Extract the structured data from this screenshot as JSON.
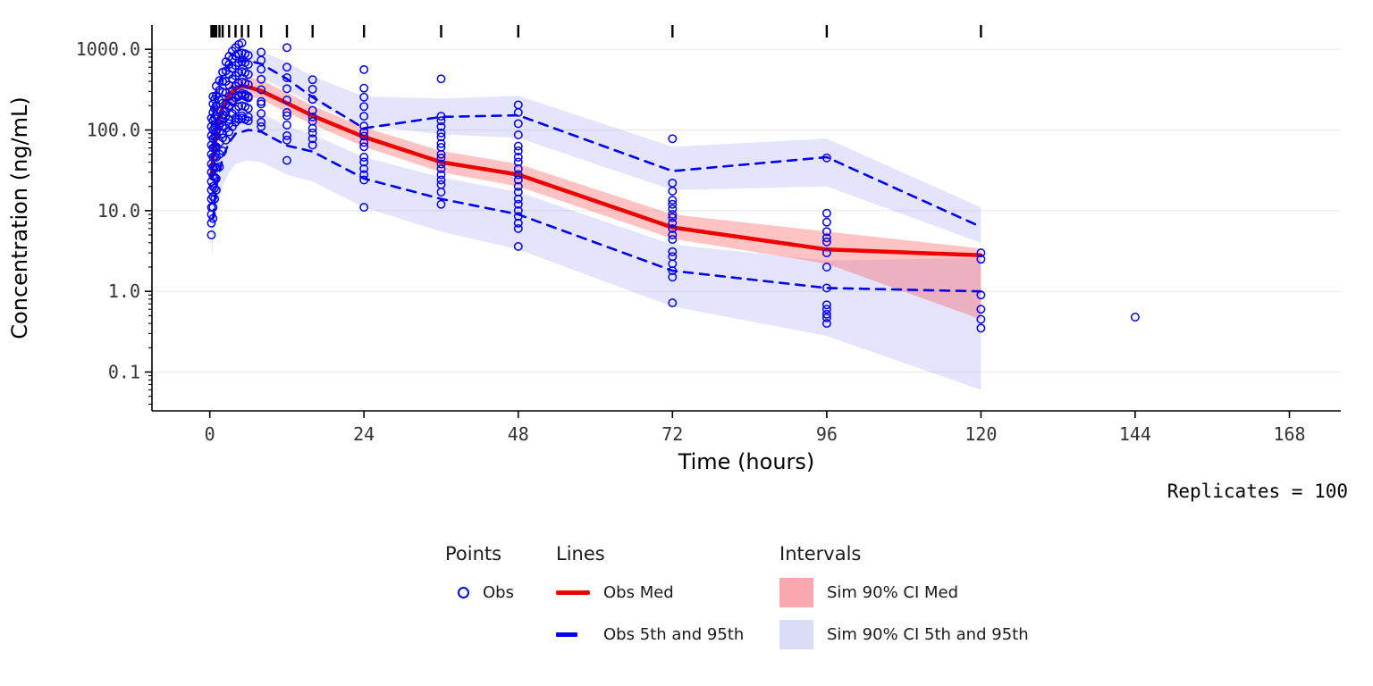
{
  "replicates_label": "Replicates = 100",
  "colors": {
    "obs": "#0000EE",
    "obs_med": "#EE0000",
    "obs_pct": "#0000EE",
    "sim_med_fill": "rgba(255,55,55,0.30)",
    "sim_pct_fill": "rgba(85,85,235,0.16)",
    "sim_med_legend": "#F9A8AE",
    "sim_pct_legend": "#DBDDF8",
    "grid": "#EBEBEB",
    "axis": "#000000",
    "tick_text": "#333333"
  },
  "legend": {
    "points_header": "Points",
    "lines_header": "Lines",
    "intervals_header": "Intervals",
    "obs_label": "Obs",
    "obs_med_label": "Obs Med",
    "obs_pct_label": "Obs 5th and 95th",
    "sim_med_label": "Sim 90% CI Med",
    "sim_pct_label": "Sim 90% CI 5th and 95th"
  },
  "chart_data": {
    "type": "line",
    "subtype": "vpc-scatter-line-band",
    "title": "",
    "xlabel": "Time (hours)",
    "ylabel": "Concentration (ng/mL)",
    "xlim": [
      -9,
      176
    ],
    "ylim_log": [
      0.033,
      2000
    ],
    "xticks": [
      0,
      24,
      48,
      72,
      96,
      120,
      144,
      168
    ],
    "yticks": [
      {
        "v": 1000,
        "label": "1000.0"
      },
      {
        "v": 100,
        "label": "100.0"
      },
      {
        "v": 10,
        "label": "10.0"
      },
      {
        "v": 1,
        "label": "1.0"
      },
      {
        "v": 0.1,
        "label": "0.1"
      }
    ],
    "grid": "horizontal-major",
    "legend_position": "bottom",
    "rug_times": [
      0.25,
      0.5,
      0.75,
      1,
      1.5,
      2,
      3,
      4,
      5,
      6,
      8,
      12,
      16,
      24,
      36,
      48,
      72,
      96,
      120
    ],
    "bands": [
      {
        "name": "Sim 90% CI 95th",
        "color": "rgba(85,85,235,0.16)",
        "x": [
          0.3,
          0.5,
          1,
          2,
          3,
          4,
          6,
          8,
          12,
          16,
          24,
          36,
          48,
          72,
          96,
          120
        ],
        "lo": [
          60,
          100,
          190,
          330,
          420,
          470,
          480,
          440,
          310,
          210,
          115,
          88,
          80,
          18,
          20,
          4
        ],
        "hi": [
          160,
          260,
          480,
          750,
          900,
          980,
          1000,
          950,
          700,
          460,
          260,
          245,
          265,
          62,
          78,
          11
        ]
      },
      {
        "name": "Sim 90% CI 5th",
        "color": "rgba(85,85,235,0.16)",
        "x": [
          0.3,
          0.5,
          1,
          2,
          3,
          4,
          6,
          8,
          12,
          16,
          24,
          36,
          48,
          72,
          96,
          120
        ],
        "lo": [
          2.5,
          4,
          9,
          20,
          30,
          38,
          42,
          40,
          28,
          23,
          11,
          5.5,
          3.3,
          0.65,
          0.28,
          0.06
        ],
        "hi": [
          12,
          20,
          42,
          85,
          130,
          160,
          175,
          165,
          110,
          88,
          46,
          26,
          17,
          3.8,
          2.4,
          2.6
        ]
      },
      {
        "name": "Sim 90% CI Med",
        "color": "rgba(255,55,55,0.30)",
        "x": [
          0.3,
          0.5,
          1,
          2,
          3,
          4,
          6,
          8,
          12,
          16,
          24,
          36,
          48,
          72,
          96,
          120
        ],
        "lo": [
          15,
          28,
          55,
          110,
          170,
          220,
          260,
          240,
          165,
          118,
          62,
          30,
          20,
          4.5,
          2.2,
          0.45
        ],
        "hi": [
          40,
          70,
          130,
          250,
          360,
          430,
          450,
          420,
          290,
          200,
          108,
          55,
          38,
          9,
          5.5,
          3.4
        ]
      }
    ],
    "series": [
      {
        "name": "Obs 95th",
        "color": "#0000EE",
        "width": 2.6,
        "dash": "10 8",
        "x": [
          0.5,
          1,
          2,
          3,
          4,
          6,
          8,
          12,
          16,
          24,
          36,
          48,
          72,
          96,
          120
        ],
        "y": [
          150,
          300,
          500,
          640,
          700,
          720,
          660,
          430,
          255,
          105,
          145,
          152,
          31,
          46,
          6.3
        ]
      },
      {
        "name": "Obs 5th",
        "color": "#0000EE",
        "width": 2.6,
        "dash": "10 8",
        "x": [
          0.5,
          1,
          2,
          3,
          4,
          6,
          8,
          12,
          16,
          24,
          36,
          48,
          72,
          96,
          120
        ],
        "y": [
          8,
          20,
          45,
          70,
          90,
          100,
          95,
          64,
          54,
          25,
          14,
          9,
          1.8,
          1.1,
          1.0
        ]
      },
      {
        "name": "Obs Med",
        "color": "#EE0000",
        "width": 4.5,
        "dash": "",
        "x": [
          0.3,
          0.5,
          1,
          1.5,
          2,
          3,
          4,
          5,
          6,
          8,
          12,
          16,
          24,
          36,
          48,
          72,
          96,
          120
        ],
        "y": [
          25,
          45,
          95,
          145,
          195,
          270,
          330,
          350,
          340,
          305,
          215,
          150,
          82,
          40,
          28,
          6.2,
          3.3,
          2.8
        ]
      }
    ],
    "obs_points": [
      {
        "t": 0.25,
        "values": [
          5,
          7,
          9,
          11,
          14,
          18,
          23,
          30,
          38,
          50,
          65,
          85,
          110,
          140
        ]
      },
      {
        "t": 0.5,
        "values": [
          8,
          11,
          15,
          20,
          27,
          35,
          46,
          60,
          78,
          100,
          130,
          165,
          210,
          260
        ]
      },
      {
        "t": 0.75,
        "values": [
          14,
          19,
          26,
          35,
          47,
          62,
          82,
          108,
          140,
          185,
          240
        ]
      },
      {
        "t": 1,
        "values": [
          18,
          25,
          34,
          46,
          62,
          84,
          112,
          150,
          200,
          265,
          350,
          95,
          60
        ]
      },
      {
        "t": 1.5,
        "values": [
          35,
          50,
          70,
          95,
          130,
          175,
          235,
          310,
          410,
          120
        ]
      },
      {
        "t": 2,
        "values": [
          55,
          80,
          112,
          155,
          215,
          295,
          400,
          520,
          140,
          90
        ]
      },
      {
        "t": 2.5,
        "values": [
          75,
          105,
          150,
          210,
          290,
          400,
          540,
          700,
          170
        ]
      },
      {
        "t": 3,
        "values": [
          95,
          135,
          190,
          260,
          360,
          490,
          650,
          820,
          200,
          120
        ]
      },
      {
        "t": 3.5,
        "values": [
          110,
          160,
          225,
          310,
          430,
          580,
          760,
          950,
          230
        ]
      },
      {
        "t": 4,
        "values": [
          125,
          180,
          250,
          350,
          470,
          630,
          830,
          1050,
          250,
          140
        ]
      },
      {
        "t": 4.5,
        "values": [
          135,
          195,
          270,
          380,
          510,
          680,
          880,
          1150,
          260
        ]
      },
      {
        "t": 5,
        "values": [
          140,
          200,
          285,
          395,
          530,
          700,
          900,
          1200,
          270,
          150
        ]
      },
      {
        "t": 5.5,
        "values": [
          135,
          195,
          275,
          385,
          515,
          685,
          880,
          260
        ]
      },
      {
        "t": 6,
        "values": [
          130,
          185,
          260,
          365,
          490,
          650,
          840,
          250,
          145
        ]
      },
      {
        "t": 8,
        "values": [
          110,
          160,
          225,
          315,
          425,
          565,
          730,
          920,
          210,
          125
        ]
      },
      {
        "t": 12,
        "values": [
          42,
          75,
          115,
          165,
          235,
          325,
          445,
          600,
          1050,
          85,
          150
        ]
      },
      {
        "t": 16,
        "values": [
          65,
          92,
          128,
          175,
          240,
          320,
          420,
          105,
          145,
          78
        ]
      },
      {
        "t": 24,
        "values": [
          11,
          24,
          33,
          46,
          62,
          84,
          112,
          148,
          195,
          255,
          330,
          560,
          28,
          40,
          70,
          95
        ]
      },
      {
        "t": 36,
        "values": [
          12,
          17,
          24,
          33,
          45,
          61,
          82,
          110,
          148,
          430,
          21,
          28,
          50,
          68,
          92,
          130,
          38
        ]
      },
      {
        "t": 48,
        "values": [
          3.6,
          6,
          8.5,
          12,
          17,
          24,
          33,
          46,
          63,
          87,
          120,
          165,
          205,
          7,
          10,
          14,
          20,
          28,
          40,
          55
        ]
      },
      {
        "t": 72,
        "values": [
          0.72,
          1.5,
          2.2,
          3.1,
          4.4,
          6,
          8.2,
          10.5,
          13.5,
          17.5,
          22,
          78,
          1.8,
          2.7,
          5,
          7,
          9,
          12
        ]
      },
      {
        "t": 96,
        "values": [
          0.4,
          0.52,
          0.68,
          1.1,
          2,
          3,
          4.1,
          5.5,
          7.2,
          9.3,
          45,
          0.47,
          0.6,
          4.6
        ]
      },
      {
        "t": 120,
        "values": [
          0.35,
          0.45,
          0.6,
          0.9,
          2.5,
          3
        ]
      },
      {
        "t": 144,
        "values": [
          0.48
        ]
      }
    ]
  }
}
